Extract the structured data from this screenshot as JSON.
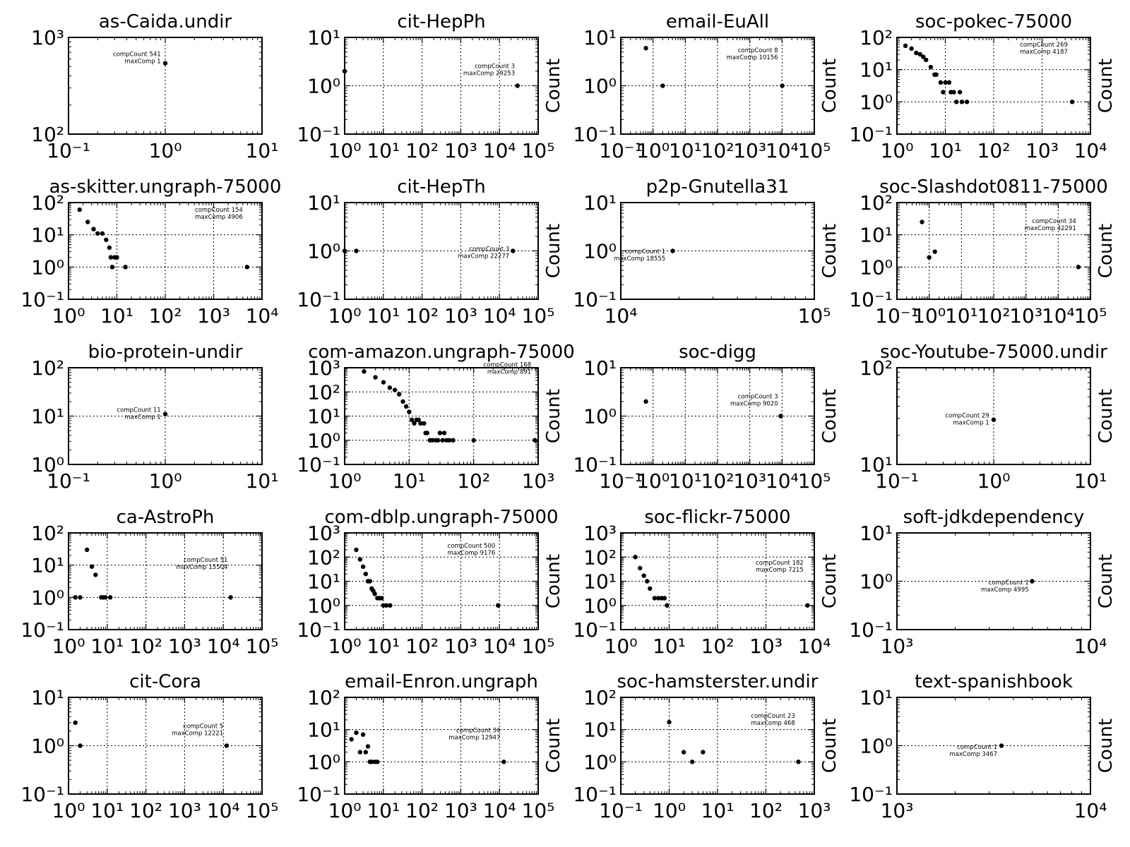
{
  "figure": {
    "background": "#ffffff",
    "marker_color": "#000000"
  },
  "chart_data": [
    {
      "type": "scatter",
      "title": "as-Caida.undir",
      "ylabel": "",
      "xscale": "log",
      "yscale": "log",
      "xlim": [
        0.1,
        10
      ],
      "ylim": [
        100,
        1000
      ],
      "xtickexp": [
        -1,
        0,
        1
      ],
      "ytickexp": [
        2,
        3
      ],
      "xgrid": [
        1
      ],
      "ygrid": [],
      "annotation": [
        "compCount 541",
        "maxComp 1"
      ],
      "annot_at": [
        0.9,
        610
      ],
      "points": [
        [
          1,
          541
        ]
      ]
    },
    {
      "type": "scatter",
      "title": "cit-HepPh",
      "ylabel": "Count",
      "xscale": "log",
      "yscale": "log",
      "xlim": [
        1,
        100000
      ],
      "ylim": [
        0.1,
        10
      ],
      "xtickexp": [
        0,
        1,
        2,
        3,
        4,
        5
      ],
      "ytickexp": [
        -1,
        0,
        1
      ],
      "xgrid": [
        10,
        100,
        1000,
        10000
      ],
      "ygrid": [
        1
      ],
      "annotation": [
        "compCount 3",
        "maxComp 29253"
      ],
      "annot_at": [
        25000,
        2.1
      ],
      "points": [
        [
          1,
          2
        ],
        [
          29253,
          1
        ]
      ]
    },
    {
      "type": "scatter",
      "title": "email-EuAll",
      "ylabel": "Count",
      "xscale": "log",
      "yscale": "log",
      "xlim": [
        0.1,
        100000
      ],
      "ylim": [
        0.1,
        10
      ],
      "xtickexp": [
        -1,
        0,
        1,
        2,
        3,
        4,
        5
      ],
      "ytickexp": [
        -1,
        0,
        1
      ],
      "xgrid": [
        1,
        10,
        100,
        1000,
        10000
      ],
      "ygrid": [
        1
      ],
      "annotation": [
        "compCount 8",
        "maxComp 10156"
      ],
      "annot_at": [
        7500,
        4.5
      ],
      "points": [
        [
          0.6,
          6
        ],
        [
          2,
          1
        ],
        [
          10156,
          1
        ]
      ]
    },
    {
      "type": "scatter",
      "title": "soc-pokec-75000",
      "ylabel": "Count",
      "xscale": "log",
      "yscale": "log",
      "xlim": [
        1,
        10000
      ],
      "ylim": [
        0.1,
        100
      ],
      "xtickexp": [
        0,
        1,
        2,
        3,
        4
      ],
      "ytickexp": [
        -1,
        0,
        1,
        2
      ],
      "xgrid": [
        10,
        100,
        1000
      ],
      "ygrid": [
        1,
        10
      ],
      "annotation": [
        "compCount 269",
        "maxComp 4187"
      ],
      "annot_at": [
        3400,
        45
      ],
      "points": [
        [
          1.5,
          55
        ],
        [
          2,
          45
        ],
        [
          2.5,
          33
        ],
        [
          3,
          30
        ],
        [
          3.5,
          25
        ],
        [
          4,
          20
        ],
        [
          5,
          12
        ],
        [
          6,
          7
        ],
        [
          6.5,
          7
        ],
        [
          8,
          4
        ],
        [
          9,
          2
        ],
        [
          10,
          4
        ],
        [
          12,
          4
        ],
        [
          13,
          2
        ],
        [
          15,
          2
        ],
        [
          17,
          1
        ],
        [
          20,
          2
        ],
        [
          22,
          1
        ],
        [
          28,
          1
        ],
        [
          4187,
          1
        ]
      ]
    },
    {
      "type": "scatter",
      "title": "as-skitter.ungraph-75000",
      "ylabel": "",
      "xscale": "log",
      "yscale": "log",
      "xlim": [
        1,
        10000
      ],
      "ylim": [
        0.1,
        100
      ],
      "xtickexp": [
        0,
        1,
        2,
        3,
        4
      ],
      "ytickexp": [
        -1,
        0,
        1,
        2
      ],
      "xgrid": [
        10,
        100,
        1000
      ],
      "ygrid": [
        1,
        10
      ],
      "annotation": [
        "compCount 154",
        "maxComp 4906"
      ],
      "annot_at": [
        4000,
        45
      ],
      "points": [
        [
          1.7,
          60
        ],
        [
          2.5,
          25
        ],
        [
          3.3,
          15
        ],
        [
          4,
          11
        ],
        [
          5,
          11
        ],
        [
          6,
          7
        ],
        [
          7,
          4
        ],
        [
          7.5,
          2
        ],
        [
          8,
          1
        ],
        [
          9,
          2
        ],
        [
          10,
          2
        ],
        [
          15,
          1
        ],
        [
          4906,
          1
        ]
      ]
    },
    {
      "type": "scatter",
      "title": "cit-HepTh",
      "ylabel": "Count",
      "xscale": "log",
      "yscale": "log",
      "xlim": [
        1,
        100000
      ],
      "ylim": [
        0.1,
        10
      ],
      "xtickexp": [
        0,
        1,
        2,
        3,
        4,
        5
      ],
      "ytickexp": [
        -1,
        0,
        1
      ],
      "xgrid": [
        10,
        100,
        1000,
        10000
      ],
      "ygrid": [
        1
      ],
      "annotation": [
        "compCount 3",
        "maxComp 22277"
      ],
      "annot_at": [
        18000,
        0.9
      ],
      "points": [
        [
          1,
          1
        ],
        [
          2,
          1
        ],
        [
          22277,
          1
        ]
      ]
    },
    {
      "type": "scatter",
      "title": "p2p-Gnutella31",
      "ylabel": "Count",
      "xscale": "log",
      "yscale": "log",
      "xlim": [
        10000,
        100000
      ],
      "ylim": [
        0.1,
        10
      ],
      "xtickexp": [
        4,
        5
      ],
      "ytickexp": [
        -1,
        0,
        1
      ],
      "xgrid": [],
      "ygrid": [
        1
      ],
      "annotation": [
        "compCount 1",
        "maxComp 18555"
      ],
      "annot_at": [
        17000,
        0.8
      ],
      "points": [
        [
          18555,
          1
        ]
      ]
    },
    {
      "type": "scatter",
      "title": "soc-Slashdot0811-75000",
      "ylabel": "Count",
      "xscale": "log",
      "yscale": "log",
      "xlim": [
        0.1,
        100000
      ],
      "ylim": [
        0.1,
        100
      ],
      "xtickexp": [
        -1,
        0,
        1,
        2,
        3,
        4,
        5
      ],
      "ytickexp": [
        -1,
        0,
        1,
        2
      ],
      "xgrid": [
        1,
        10,
        100,
        1000,
        10000
      ],
      "ygrid": [
        1,
        10
      ],
      "annotation": [
        "compCount 34",
        "maxComp 42291"
      ],
      "annot_at": [
        36000,
        20
      ],
      "points": [
        [
          0.6,
          25
        ],
        [
          1,
          2
        ],
        [
          1.5,
          3
        ],
        [
          42291,
          1
        ]
      ]
    },
    {
      "type": "scatter",
      "title": "bio-protein-undir",
      "ylabel": "",
      "xscale": "log",
      "yscale": "log",
      "xlim": [
        0.1,
        10
      ],
      "ylim": [
        1,
        100
      ],
      "xtickexp": [
        -1,
        0,
        1
      ],
      "ytickexp": [
        0,
        1,
        2
      ],
      "xgrid": [
        1
      ],
      "ygrid": [
        10
      ],
      "annotation": [
        "compCount 11",
        "maxComp 1"
      ],
      "annot_at": [
        0.9,
        11
      ],
      "points": [
        [
          1,
          11
        ]
      ]
    },
    {
      "type": "scatter",
      "title": "com-amazon.ungraph-75000",
      "ylabel": "Count",
      "xscale": "log",
      "yscale": "log",
      "xlim": [
        1,
        1000
      ],
      "ylim": [
        0.1,
        1000
      ],
      "xtickexp": [
        0,
        1,
        2,
        3
      ],
      "ytickexp": [
        -1,
        0,
        1,
        2,
        3
      ],
      "xgrid": [
        10,
        100
      ],
      "ygrid": [
        1,
        10,
        100
      ],
      "annotation": [
        "compCount 168",
        "maxComp 891"
      ],
      "annot_at": [
        780,
        900
      ],
      "points": [
        [
          2,
          700
        ],
        [
          3,
          400
        ],
        [
          4,
          250
        ],
        [
          5,
          150
        ],
        [
          6,
          120
        ],
        [
          7,
          80
        ],
        [
          8,
          40
        ],
        [
          9,
          25
        ],
        [
          10,
          15
        ],
        [
          11,
          7
        ],
        [
          12,
          5
        ],
        [
          13,
          7
        ],
        [
          14,
          7
        ],
        [
          15,
          5
        ],
        [
          17,
          5
        ],
        [
          18,
          2
        ],
        [
          19,
          2
        ],
        [
          21,
          1
        ],
        [
          23,
          1
        ],
        [
          26,
          1
        ],
        [
          28,
          1
        ],
        [
          30,
          2
        ],
        [
          33,
          1
        ],
        [
          35,
          2
        ],
        [
          38,
          1
        ],
        [
          42,
          1
        ],
        [
          48,
          1
        ],
        [
          100,
          1
        ],
        [
          891,
          1
        ]
      ]
    },
    {
      "type": "scatter",
      "title": "soc-digg",
      "ylabel": "Count",
      "xscale": "log",
      "yscale": "log",
      "xlim": [
        0.1,
        100000
      ],
      "ylim": [
        0.1,
        10
      ],
      "xtickexp": [
        -1,
        0,
        1,
        2,
        3,
        4,
        5
      ],
      "ytickexp": [
        -1,
        0,
        1
      ],
      "xgrid": [
        1,
        10,
        100,
        1000,
        10000
      ],
      "ygrid": [
        1
      ],
      "annotation": [
        "compCount 3",
        "maxComp 9020"
      ],
      "annot_at": [
        7500,
        2.1
      ],
      "points": [
        [
          0.6,
          2
        ],
        [
          9020,
          1
        ]
      ]
    },
    {
      "type": "scatter",
      "title": "soc-Youtube-75000.undir",
      "ylabel": "Count",
      "xscale": "log",
      "yscale": "log",
      "xlim": [
        0.1,
        10
      ],
      "ylim": [
        10,
        100
      ],
      "xtickexp": [
        -1,
        0,
        1
      ],
      "ytickexp": [
        1,
        2
      ],
      "xgrid": [
        1
      ],
      "ygrid": [],
      "annotation": [
        "compCount 29",
        "maxComp 1"
      ],
      "annot_at": [
        0.9,
        29
      ],
      "points": [
        [
          1,
          29
        ]
      ]
    },
    {
      "type": "scatter",
      "title": "ca-AstroPh",
      "ylabel": "",
      "xscale": "log",
      "yscale": "log",
      "xlim": [
        1,
        100000
      ],
      "ylim": [
        0.1,
        100
      ],
      "xtickexp": [
        0,
        1,
        2,
        3,
        4,
        5
      ],
      "ytickexp": [
        -1,
        0,
        1,
        2
      ],
      "xgrid": [
        10,
        100,
        1000,
        10000
      ],
      "ygrid": [
        1,
        10
      ],
      "annotation": [
        "compCount 51",
        "maxComp 15504"
      ],
      "annot_at": [
        13000,
        11
      ],
      "points": [
        [
          1.5,
          1
        ],
        [
          2,
          1
        ],
        [
          3,
          30
        ],
        [
          4,
          9
        ],
        [
          5,
          5
        ],
        [
          7,
          1
        ],
        [
          8,
          1
        ],
        [
          9,
          1
        ],
        [
          12,
          1
        ],
        [
          15504,
          1
        ]
      ]
    },
    {
      "type": "scatter",
      "title": "com-dblp.ungraph-75000",
      "ylabel": "Count",
      "xscale": "log",
      "yscale": "log",
      "xlim": [
        1,
        100000
      ],
      "ylim": [
        0.1,
        1000
      ],
      "xtickexp": [
        0,
        1,
        2,
        3,
        4,
        5
      ],
      "ytickexp": [
        -1,
        0,
        1,
        2,
        3
      ],
      "xgrid": [
        10,
        100,
        1000,
        10000
      ],
      "ygrid": [
        1,
        10,
        100
      ],
      "annotation": [
        "compCount 500",
        "maxComp 9176"
      ],
      "annot_at": [
        7800,
        200
      ],
      "points": [
        [
          2,
          200
        ],
        [
          2.5,
          80
        ],
        [
          3,
          40
        ],
        [
          3.5,
          20
        ],
        [
          4,
          10
        ],
        [
          4.5,
          10
        ],
        [
          5,
          5
        ],
        [
          5.5,
          4
        ],
        [
          6,
          3
        ],
        [
          7,
          2
        ],
        [
          8,
          2
        ],
        [
          9,
          2
        ],
        [
          10,
          1
        ],
        [
          12,
          1
        ],
        [
          15,
          1
        ],
        [
          9176,
          1
        ]
      ]
    },
    {
      "type": "scatter",
      "title": "soc-flickr-75000",
      "ylabel": "Count",
      "xscale": "log",
      "yscale": "log",
      "xlim": [
        1,
        10000
      ],
      "ylim": [
        0.1,
        1000
      ],
      "xtickexp": [
        0,
        1,
        2,
        3,
        4
      ],
      "ytickexp": [
        -1,
        0,
        1,
        2,
        3
      ],
      "xgrid": [
        10,
        100,
        1000
      ],
      "ygrid": [
        1,
        10,
        100
      ],
      "annotation": [
        "compCount 182",
        "maxComp 7215"
      ],
      "annot_at": [
        6000,
        40
      ],
      "points": [
        [
          2,
          100
        ],
        [
          2.5,
          35
        ],
        [
          3,
          17
        ],
        [
          3.5,
          10
        ],
        [
          4,
          5
        ],
        [
          5,
          2
        ],
        [
          6,
          2
        ],
        [
          7,
          2
        ],
        [
          8,
          2
        ],
        [
          9,
          1
        ],
        [
          7215,
          1
        ]
      ]
    },
    {
      "type": "scatter",
      "title": "soft-jdkdependency",
      "ylabel": "Count",
      "xscale": "log",
      "yscale": "log",
      "xlim": [
        1000,
        10000
      ],
      "ylim": [
        0.1,
        10
      ],
      "xtickexp": [
        3,
        4
      ],
      "ytickexp": [
        -1,
        0,
        1
      ],
      "xgrid": [],
      "ygrid": [
        1
      ],
      "annotation": [
        "compCount 1",
        "maxComp 4995"
      ],
      "annot_at": [
        4800,
        0.78
      ],
      "points": [
        [
          4995,
          1
        ]
      ]
    },
    {
      "type": "scatter",
      "title": "cit-Cora",
      "ylabel": "",
      "xscale": "log",
      "yscale": "log",
      "xlim": [
        1,
        100000
      ],
      "ylim": [
        0.1,
        10
      ],
      "xtickexp": [
        0,
        1,
        2,
        3,
        4,
        5
      ],
      "ytickexp": [
        -1,
        0,
        1
      ],
      "xgrid": [
        10,
        100,
        1000,
        10000
      ],
      "ygrid": [
        1
      ],
      "annotation": [
        "compCount 5",
        "maxComp 12221"
      ],
      "annot_at": [
        10000,
        2.1
      ],
      "points": [
        [
          1.5,
          3
        ],
        [
          2,
          1
        ],
        [
          12221,
          1
        ]
      ]
    },
    {
      "type": "scatter",
      "title": "email-Enron.ungraph",
      "ylabel": "Count",
      "xscale": "log",
      "yscale": "log",
      "xlim": [
        1,
        100000
      ],
      "ylim": [
        0.1,
        100
      ],
      "xtickexp": [
        0,
        1,
        2,
        3,
        4,
        5
      ],
      "ytickexp": [
        -1,
        0,
        1,
        2
      ],
      "xgrid": [
        10,
        100,
        1000,
        10000
      ],
      "ygrid": [
        1,
        10
      ],
      "annotation": [
        "compCount 34",
        "maxComp 12947"
      ],
      "annot_at": [
        10500,
        7
      ],
      "points": [
        [
          1.5,
          5
        ],
        [
          2,
          8
        ],
        [
          2.5,
          2
        ],
        [
          3,
          7
        ],
        [
          3.5,
          2
        ],
        [
          4,
          3
        ],
        [
          4.5,
          1
        ],
        [
          5,
          1
        ],
        [
          6,
          1
        ],
        [
          7,
          1
        ],
        [
          12947,
          1
        ]
      ]
    },
    {
      "type": "scatter",
      "title": "soc-hamsterster.undir",
      "ylabel": "Count",
      "xscale": "log",
      "yscale": "log",
      "xlim": [
        0.1,
        1000
      ],
      "ylim": [
        0.1,
        100
      ],
      "xtickexp": [
        -1,
        0,
        1,
        2,
        3
      ],
      "ytickexp": [
        -1,
        0,
        1,
        2
      ],
      "xgrid": [
        1,
        10,
        100
      ],
      "ygrid": [
        1,
        10
      ],
      "annotation": [
        "compCount 23",
        "maxComp 468"
      ],
      "annot_at": [
        400,
        20
      ],
      "points": [
        [
          1,
          17
        ],
        [
          2,
          2
        ],
        [
          3,
          1
        ],
        [
          5,
          2
        ],
        [
          468,
          1
        ]
      ]
    },
    {
      "type": "scatter",
      "title": "text-spanishbook",
      "ylabel": "Count",
      "xscale": "log",
      "yscale": "log",
      "xlim": [
        1000,
        10000
      ],
      "ylim": [
        0.1,
        10
      ],
      "xtickexp": [
        3,
        4
      ],
      "ytickexp": [
        -1,
        0,
        1
      ],
      "xgrid": [],
      "ygrid": [
        1
      ],
      "annotation": [
        "compCount 1",
        "maxComp 3467"
      ],
      "annot_at": [
        3300,
        0.78
      ],
      "points": [
        [
          3467,
          1
        ]
      ]
    }
  ]
}
